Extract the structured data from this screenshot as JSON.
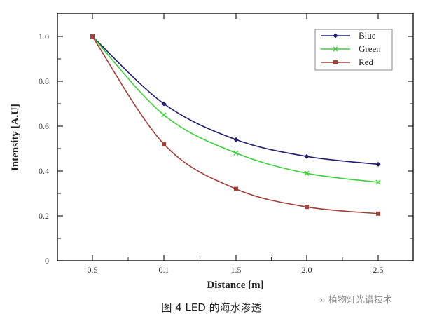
{
  "chart_data": {
    "type": "line",
    "title": "",
    "xlabel": "Distance [m]",
    "ylabel": "Intensity [A.U]",
    "categories": [
      "0.5",
      "0.1",
      "1.5",
      "2.0",
      "2.5"
    ],
    "x_ticks": [
      "0.5",
      "0.1",
      "1.5",
      "2.0",
      "2.5"
    ],
    "y_ticks": [
      "0",
      "0.2",
      "0.4",
      "0.6",
      "0.8",
      "1.0"
    ],
    "ylim": [
      0,
      1.1
    ],
    "grid": false,
    "legend_position": "top-right",
    "series": [
      {
        "name": "Blue",
        "color": "#1f1f6e",
        "marker": "diamond",
        "values": [
          1.0,
          0.7,
          0.54,
          0.465,
          0.43
        ]
      },
      {
        "name": "Green",
        "color": "#3ecf3e",
        "marker": "x",
        "values": [
          1.0,
          0.65,
          0.48,
          0.39,
          0.35
        ]
      },
      {
        "name": "Red",
        "color": "#a0403a",
        "marker": "square",
        "values": [
          1.0,
          0.52,
          0.32,
          0.24,
          0.21
        ]
      }
    ]
  },
  "caption": "图 4 LED 的海水渗透",
  "watermark": "植物灯光谱技术"
}
